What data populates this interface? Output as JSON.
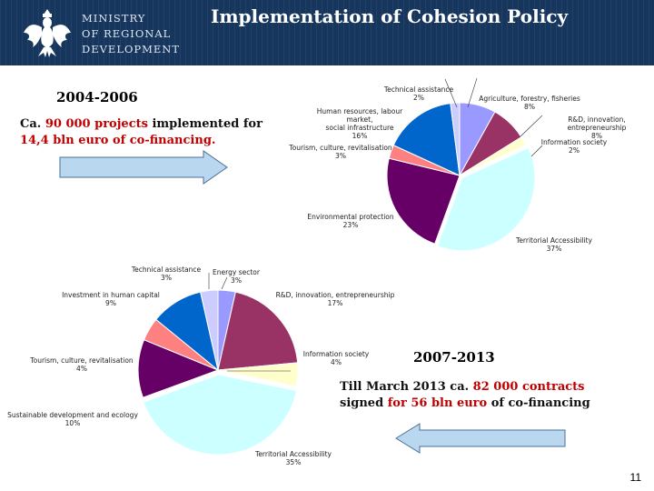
{
  "header": {
    "ministry_line1": "MINISTRY",
    "ministry_line2": "OF REGIONAL",
    "ministry_line3": "DEVELOPMENT",
    "title": "Implementation of Cohesion Policy"
  },
  "period1": {
    "label": "2004-2006",
    "text_a": "Ca. ",
    "projects_num": "90 000 projects",
    "text_b": " implemented for",
    "line2": "14,4 bln euro of co-financing."
  },
  "period2": {
    "label": "2007-2013",
    "text_a": "Till March 2013 ca. ",
    "contracts": "82  000 contracts",
    "text_b": "signed ",
    "for": "for  ",
    "amount": "56 bln euro",
    "text_c": " of co-financing"
  },
  "chart1_labels": {
    "ta": "Technical assistance",
    "ta_v": "2%",
    "agr": "Agriculture, forestry, fisheries",
    "agr_v": "8%",
    "rd": "R&D, innovation, entrepreneurship",
    "rd_v": "8%",
    "is": "Information society",
    "is_v": "2%",
    "hr1": "Human resources, labour market,",
    "hr2": "social infrastructure",
    "hr_v": "16%",
    "tour": "Tourism, culture, revitalisation",
    "tour_v": "3%",
    "env": "Environmental protection",
    "env_v": "23%",
    "tacc": "Territorial Accessibility",
    "tacc_v": "37%"
  },
  "chart2_labels": {
    "ta": "Technical assistance",
    "ta_v": "3%",
    "en": "Energy sector",
    "en_v": "3%",
    "hc": "Investment in human capital",
    "hc_v": "9%",
    "rd": "R&D, innovation, entrepreneurship",
    "rd_v": "17%",
    "is": "Information society",
    "is_v": "4%",
    "tour": "Tourism, culture, revitalisation",
    "tour_v": "4%",
    "sd": "Sustainable development and ecology",
    "sd_v": "10%",
    "tacc": "Territorial Accessibility",
    "tacc_v": "35%"
  },
  "chart_data": [
    {
      "type": "pie",
      "title": "2004-2006",
      "slices": [
        {
          "label": "Agriculture, forestry, fisheries",
          "value": 8,
          "color": "#9999ff"
        },
        {
          "label": "R&D, innovation, entrepreneurship",
          "value": 8,
          "color": "#993366"
        },
        {
          "label": "Information society",
          "value": 2,
          "color": "#ffffcc"
        },
        {
          "label": "Territorial Accessibility",
          "value": 37,
          "color": "#ccffff"
        },
        {
          "label": "Environmental protection",
          "value": 23,
          "color": "#660066"
        },
        {
          "label": "Tourism, culture, revitalisation",
          "value": 3,
          "color": "#ff8080"
        },
        {
          "label": "Human resources, labour market, social infrastructure",
          "value": 16,
          "color": "#0066cc"
        },
        {
          "label": "Technical assistance",
          "value": 2,
          "color": "#ccccff"
        }
      ]
    },
    {
      "type": "pie",
      "title": "2007-2013",
      "slices": [
        {
          "label": "Energy sector",
          "value": 3,
          "color": "#9999ff"
        },
        {
          "label": "R&D, innovation, entrepreneurship",
          "value": 17,
          "color": "#993366"
        },
        {
          "label": "Information society",
          "value": 4,
          "color": "#ffffcc"
        },
        {
          "label": "Territorial Accessibility",
          "value": 35,
          "color": "#ccffff"
        },
        {
          "label": "Sustainable development and ecology",
          "value": 10,
          "color": "#660066"
        },
        {
          "label": "Tourism, culture, revitalisation",
          "value": 4,
          "color": "#ff8080"
        },
        {
          "label": "Investment in human capital",
          "value": 9,
          "color": "#0066cc"
        },
        {
          "label": "Technical assistance",
          "value": 3,
          "color": "#ccccff"
        }
      ]
    }
  ],
  "colors": {
    "header_bg": "#17365d",
    "highlight": "#c00000",
    "arrow_fill": "#b9d7ee"
  },
  "page_number": "11"
}
